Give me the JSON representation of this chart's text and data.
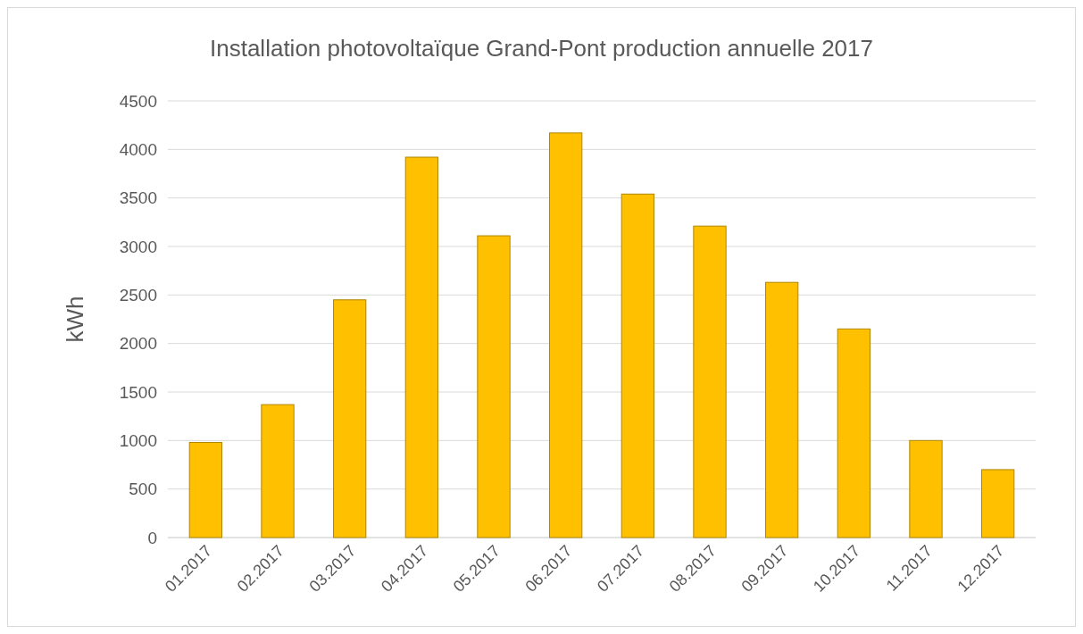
{
  "chart_data": {
    "type": "bar",
    "title": "Installation photovoltaïque Grand-Pont production annuelle 2017",
    "ylabel": "kWh",
    "categories": [
      "01.2017",
      "02.2017",
      "03.2017",
      "04.2017",
      "05.2017",
      "06.2017",
      "07.2017",
      "08.2017",
      "09.2017",
      "10.2017",
      "11.2017",
      "12.2017"
    ],
    "values": [
      980,
      1370,
      2450,
      3920,
      3110,
      4170,
      3540,
      3210,
      2630,
      2150,
      1000,
      700
    ],
    "color": "#ffc000",
    "ylim": [
      0,
      4500
    ],
    "yticks": [
      0,
      500,
      1000,
      1500,
      2000,
      2500,
      3000,
      3500,
      4000,
      4500
    ],
    "grid": "y"
  }
}
